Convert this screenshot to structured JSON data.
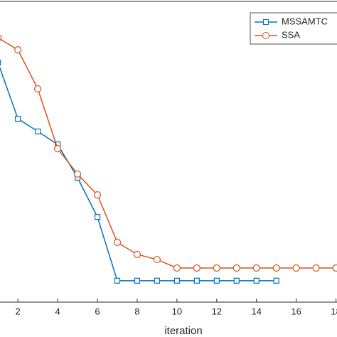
{
  "chart_data": {
    "type": "line",
    "xlabel": "iteration",
    "xlim": [
      1.1,
      18.05
    ],
    "ylim": [
      0,
      100
    ],
    "xticks": [
      2,
      4,
      6,
      8,
      10,
      12,
      14,
      16,
      18
    ],
    "legend": "top-right",
    "series": [
      {
        "name": "MSSAMTC",
        "color": "#0072BD",
        "marker": "square",
        "x": [
          1,
          2,
          3,
          4,
          5,
          6,
          7,
          8,
          9,
          10,
          11,
          12,
          13,
          14,
          15
        ],
        "values": [
          79.3,
          60.7,
          56.5,
          52.2,
          41.2,
          28.2,
          7.1,
          7.1,
          7.1,
          7.1,
          7.1,
          7.1,
          7.1,
          7.1,
          7.1
        ]
      },
      {
        "name": "SSA",
        "color": "#D95319",
        "marker": "circle",
        "x": [
          1,
          2,
          3,
          4,
          5,
          6,
          7,
          8,
          9,
          10,
          11,
          12,
          13,
          14,
          15,
          16,
          17,
          18
        ],
        "values": [
          87.5,
          83.5,
          70.6,
          50.8,
          42.4,
          35.5,
          19.8,
          15.8,
          14.1,
          11.3,
          11.3,
          11.3,
          11.3,
          11.3,
          11.3,
          11.3,
          11.3,
          11.3
        ]
      }
    ]
  }
}
